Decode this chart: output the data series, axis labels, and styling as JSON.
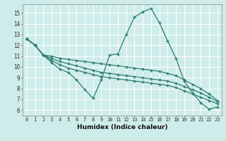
{
  "xlabel": "Humidex (Indice chaleur)",
  "ylabel": "",
  "background_color": "#ceecea",
  "grid_color": "#b0d8d5",
  "line_color": "#2e7d6e",
  "xlim": [
    -0.5,
    23.5
  ],
  "ylim": [
    5.5,
    15.8
  ],
  "yticks": [
    6,
    7,
    8,
    9,
    10,
    11,
    12,
    13,
    14,
    15
  ],
  "xticks": [
    0,
    1,
    2,
    3,
    4,
    5,
    6,
    7,
    8,
    9,
    10,
    11,
    12,
    13,
    14,
    15,
    16,
    17,
    18,
    19,
    20,
    21,
    22,
    23
  ],
  "series": [
    [
      12.6,
      12.0,
      11.1,
      10.4,
      9.8,
      9.5,
      8.8,
      7.9,
      7.1,
      8.8,
      11.1,
      11.2,
      13.0,
      14.6,
      15.1,
      15.4,
      14.1,
      12.4,
      10.8,
      8.7,
      7.6,
      6.7,
      6.1,
      6.3
    ],
    [
      12.6,
      12.0,
      11.1,
      11.0,
      10.8,
      10.7,
      10.6,
      10.5,
      10.4,
      10.3,
      10.2,
      10.1,
      10.0,
      9.9,
      9.8,
      9.7,
      9.6,
      9.4,
      9.2,
      8.8,
      8.4,
      8.0,
      7.5,
      6.9
    ],
    [
      12.6,
      12.0,
      11.1,
      10.8,
      10.5,
      10.3,
      10.1,
      9.9,
      9.7,
      9.5,
      9.4,
      9.3,
      9.2,
      9.1,
      9.0,
      8.9,
      8.8,
      8.7,
      8.5,
      8.2,
      7.9,
      7.6,
      7.2,
      6.8
    ],
    [
      12.6,
      12.0,
      11.1,
      10.6,
      10.2,
      9.9,
      9.7,
      9.5,
      9.3,
      9.1,
      9.0,
      8.9,
      8.8,
      8.7,
      8.6,
      8.5,
      8.4,
      8.3,
      8.1,
      7.8,
      7.5,
      7.2,
      6.9,
      6.6
    ]
  ]
}
